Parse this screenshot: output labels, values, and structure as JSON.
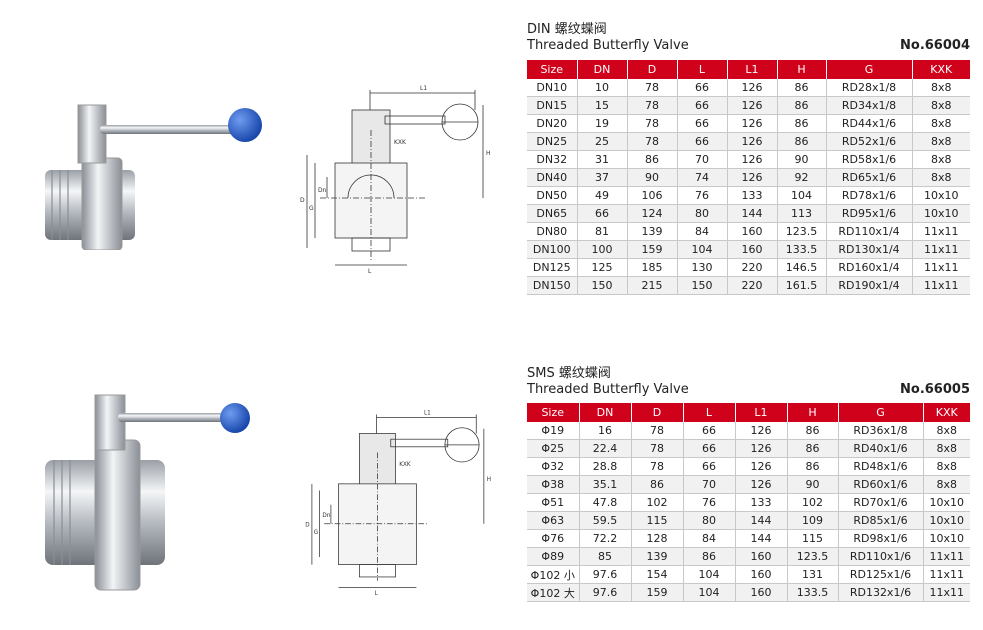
{
  "columns": [
    "Size",
    "DN",
    "D",
    "L",
    "L1",
    "H",
    "G",
    "KXK"
  ],
  "colors": {
    "header_bg": "#d0021b",
    "handle_ball": "#1f5fd6"
  },
  "drawing_labels": {
    "l1": "L1",
    "kxk": "KXK",
    "h": "H",
    "d": "D",
    "g": "G",
    "dn": "Dn",
    "l": "L"
  },
  "din": {
    "title_cn": "DIN 螺纹蝶阀",
    "title_en": "Threaded Butterfly Valve",
    "model": "No.66004",
    "rows": [
      [
        "DN10",
        "10",
        "78",
        "66",
        "126",
        "86",
        "RD28x1/8",
        "8x8"
      ],
      [
        "DN15",
        "15",
        "78",
        "66",
        "126",
        "86",
        "RD34x1/8",
        "8x8"
      ],
      [
        "DN20",
        "19",
        "78",
        "66",
        "126",
        "86",
        "RD44x1/6",
        "8x8"
      ],
      [
        "DN25",
        "25",
        "78",
        "66",
        "126",
        "86",
        "RD52x1/6",
        "8x8"
      ],
      [
        "DN32",
        "31",
        "86",
        "70",
        "126",
        "90",
        "RD58x1/6",
        "8x8"
      ],
      [
        "DN40",
        "37",
        "90",
        "74",
        "126",
        "92",
        "RD65x1/6",
        "8x8"
      ],
      [
        "DN50",
        "49",
        "106",
        "76",
        "133",
        "104",
        "RD78x1/6",
        "10x10"
      ],
      [
        "DN65",
        "66",
        "124",
        "80",
        "144",
        "113",
        "RD95x1/6",
        "10x10"
      ],
      [
        "DN80",
        "81",
        "139",
        "84",
        "160",
        "123.5",
        "RD110x1/4",
        "11x11"
      ],
      [
        "DN100",
        "100",
        "159",
        "104",
        "160",
        "133.5",
        "RD130x1/4",
        "11x11"
      ],
      [
        "DN125",
        "125",
        "185",
        "130",
        "220",
        "146.5",
        "RD160x1/4",
        "11x11"
      ],
      [
        "DN150",
        "150",
        "215",
        "150",
        "220",
        "161.5",
        "RD190x1/4",
        "11x11"
      ]
    ]
  },
  "sms": {
    "title_cn": "SMS 螺纹蝶阀",
    "title_en": "Threaded Butterfly Valve",
    "model": "No.66005",
    "rows": [
      [
        "Φ19",
        "16",
        "78",
        "66",
        "126",
        "86",
        "RD36x1/8",
        "8x8"
      ],
      [
        "Φ25",
        "22.4",
        "78",
        "66",
        "126",
        "86",
        "RD40x1/6",
        "8x8"
      ],
      [
        "Φ32",
        "28.8",
        "78",
        "66",
        "126",
        "86",
        "RD48x1/6",
        "8x8"
      ],
      [
        "Φ38",
        "35.1",
        "86",
        "70",
        "126",
        "90",
        "RD60x1/6",
        "8x8"
      ],
      [
        "Φ51",
        "47.8",
        "102",
        "76",
        "133",
        "102",
        "RD70x1/6",
        "10x10"
      ],
      [
        "Φ63",
        "59.5",
        "115",
        "80",
        "144",
        "109",
        "RD85x1/6",
        "10x10"
      ],
      [
        "Φ76",
        "72.2",
        "128",
        "84",
        "144",
        "115",
        "RD98x1/6",
        "10x10"
      ],
      [
        "Φ89",
        "85",
        "139",
        "86",
        "160",
        "123.5",
        "RD110x1/6",
        "11x11"
      ],
      [
        "Φ102 小",
        "97.6",
        "154",
        "104",
        "160",
        "131",
        "RD125x1/6",
        "11x11"
      ],
      [
        "Φ102 大",
        "97.6",
        "159",
        "104",
        "160",
        "133.5",
        "RD132x1/6",
        "11x11"
      ]
    ]
  }
}
